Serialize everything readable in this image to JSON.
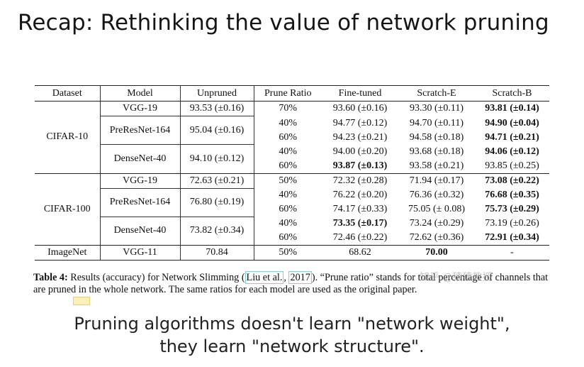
{
  "title": "Recap: Rethinking the value of network pruning",
  "table": {
    "headers": [
      "Dataset",
      "Model",
      "Unpruned",
      "Prune Ratio",
      "Fine-tuned",
      "Scratch-E",
      "Scratch-B"
    ],
    "rows": [
      {
        "dataset": "CIFAR-10",
        "model": "VGG-19",
        "unpruned": "93.53 (±0.16)",
        "ratio": "70%",
        "fine": "93.60 (±0.16)",
        "se": "93.30 (±0.11)",
        "sb": "93.81 (±0.14)",
        "bold": [
          "sb"
        ]
      },
      {
        "dataset": "",
        "model": "PreResNet-164",
        "unpruned": "95.04 (±0.16)",
        "ratio": "40%",
        "fine": "94.77 (±0.12)",
        "se": "94.70 (±0.11)",
        "sb": "94.90 (±0.04)",
        "bold": [
          "sb"
        ]
      },
      {
        "dataset": "",
        "model": "",
        "unpruned": "",
        "ratio": "60%",
        "fine": "94.23 (±0.21)",
        "se": "94.58 (±0.18)",
        "sb": "94.71 (±0.21)",
        "bold": [
          "sb"
        ]
      },
      {
        "dataset": "",
        "model": "DenseNet-40",
        "unpruned": "94.10 (±0.12)",
        "ratio": "40%",
        "fine": "94.00 (±0.20)",
        "se": "93.68 (±0.18)",
        "sb": "94.06 (±0.12)",
        "bold": [
          "sb"
        ]
      },
      {
        "dataset": "",
        "model": "",
        "unpruned": "",
        "ratio": "60%",
        "fine": "93.87 (±0.13)",
        "se": "93.58 (±0.21)",
        "sb": "93.85 (±0.25)",
        "bold": [
          "fine"
        ]
      },
      {
        "dataset": "CIFAR-100",
        "model": "VGG-19",
        "unpruned": "72.63 (±0.21)",
        "ratio": "50%",
        "fine": "72.32 (±0.28)",
        "se": "71.94 (±0.17)",
        "sb": "73.08 (±0.22)",
        "bold": [
          "sb"
        ]
      },
      {
        "dataset": "",
        "model": "PreResNet-164",
        "unpruned": "76.80 (±0.19)",
        "ratio": "40%",
        "fine": "76.22 (±0.20)",
        "se": "76.36 (±0.32)",
        "sb": "76.68 (±0.35)",
        "bold": [
          "sb"
        ]
      },
      {
        "dataset": "",
        "model": "",
        "unpruned": "",
        "ratio": "60%",
        "fine": "74.17 (±0.33)",
        "se": "75.05 (± 0.08)",
        "sb": "75.73 (±0.29)",
        "bold": [
          "sb"
        ]
      },
      {
        "dataset": "",
        "model": "DenseNet-40",
        "unpruned": "73.82 (±0.34)",
        "ratio": "40%",
        "fine": "73.35 (±0.17)",
        "se": "73.24 (±0.29)",
        "sb": "73.19 (±0.26)",
        "bold": [
          "fine"
        ]
      },
      {
        "dataset": "",
        "model": "",
        "unpruned": "",
        "ratio": "60%",
        "fine": "72.46 (±0.22)",
        "se": "72.62 (±0.36)",
        "sb": "72.91 (±0.34)",
        "bold": [
          "sb"
        ]
      },
      {
        "dataset": "ImageNet",
        "model": "VGG-11",
        "unpruned": "70.84",
        "ratio": "50%",
        "fine": "68.62",
        "se": "70.00",
        "sb": "-",
        "bold": [
          "se"
        ]
      }
    ]
  },
  "caption": {
    "label": "Table 4:",
    "text_before": " Results (accuracy) for Network Slimming (",
    "cite_author": "Liu et al.",
    "cite_sep": ", ",
    "cite_year": "2017",
    "text_after": "). “Prune ratio” stands for total percentage of channels that are pruned in the whole network. The same ratios for each model are used as the original paper."
  },
  "watermark": "知乎 @猿猿教授",
  "takeaway": "Pruning algorithms doesn't learn \"network weight\", they learn \"network structure\"."
}
